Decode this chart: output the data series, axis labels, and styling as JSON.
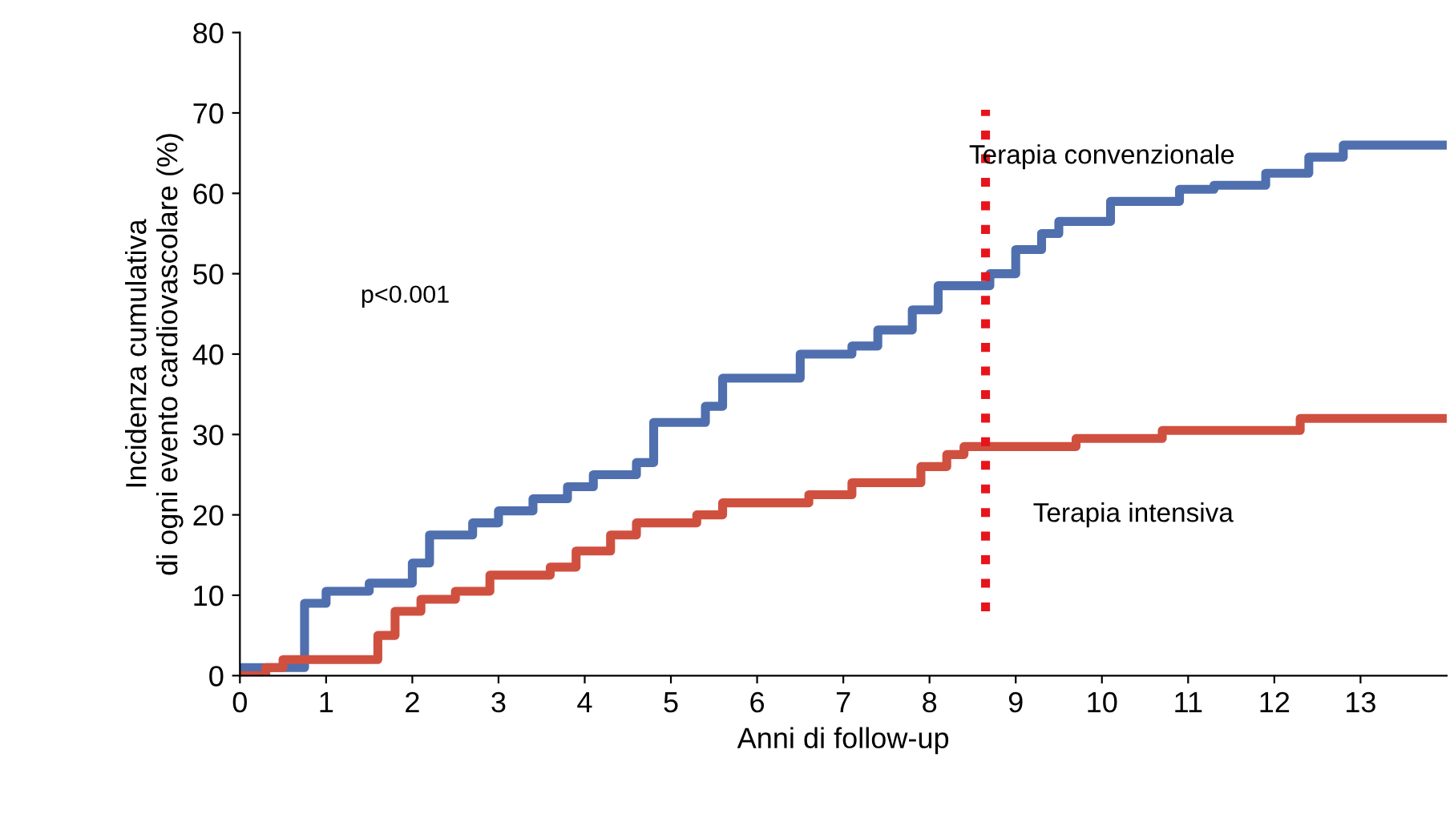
{
  "chart_data": {
    "type": "step",
    "xlabel": "Anni di follow-up",
    "ylabel": "Incidenza cumulativa\ndi ogni evento cardiovascolare (%)",
    "xlim": [
      0,
      14
    ],
    "xticks": [
      0,
      1,
      2,
      3,
      4,
      5,
      6,
      7,
      8,
      9,
      10,
      11,
      12,
      13
    ],
    "ylim": [
      0,
      80
    ],
    "yticks": [
      0,
      10,
      20,
      30,
      40,
      50,
      60,
      70,
      80
    ],
    "grid": false,
    "legend": false,
    "line_style": "solid",
    "marker": "none",
    "series": [
      {
        "name": "Terapia convenzionale",
        "color": "#4f6fae",
        "x": [
          0,
          0.75,
          1.0,
          1.5,
          2.0,
          2.2,
          2.7,
          3.0,
          3.4,
          3.8,
          4.1,
          4.6,
          4.8,
          5.4,
          5.6,
          6.5,
          7.1,
          7.4,
          7.8,
          8.1,
          8.7,
          9.0,
          9.3,
          9.5,
          10.1,
          10.9,
          11.3,
          11.9,
          12.4,
          12.8,
          14
        ],
        "values": [
          1,
          9,
          10.5,
          11.5,
          14,
          17.5,
          19,
          20.5,
          22,
          23.5,
          25,
          26.5,
          31.5,
          33.5,
          37,
          40,
          41,
          43,
          45.5,
          48.5,
          50,
          53,
          55,
          56.5,
          59,
          60.5,
          61,
          62.5,
          64.5,
          66,
          66
        ]
      },
      {
        "name": "Terapia intensiva",
        "color": "#d0503f",
        "x": [
          0,
          0.3,
          0.5,
          1.6,
          1.8,
          2.1,
          2.5,
          2.9,
          3.6,
          3.9,
          4.3,
          4.6,
          5.3,
          5.6,
          6.6,
          7.1,
          7.9,
          8.2,
          8.4,
          9.7,
          10.7,
          12.3,
          14
        ],
        "values": [
          0,
          1,
          2,
          5,
          8,
          9.5,
          10.5,
          12.5,
          13.5,
          15.5,
          17.5,
          19,
          20,
          21.5,
          22.5,
          24,
          26,
          27.5,
          28.5,
          29.5,
          30.5,
          32,
          32
        ]
      }
    ],
    "ref_lines": [
      {
        "axis": "x",
        "value": 8.65,
        "color": "#e8141c",
        "line_style": "dotted"
      }
    ],
    "annotations": [
      "p<0.001"
    ]
  }
}
